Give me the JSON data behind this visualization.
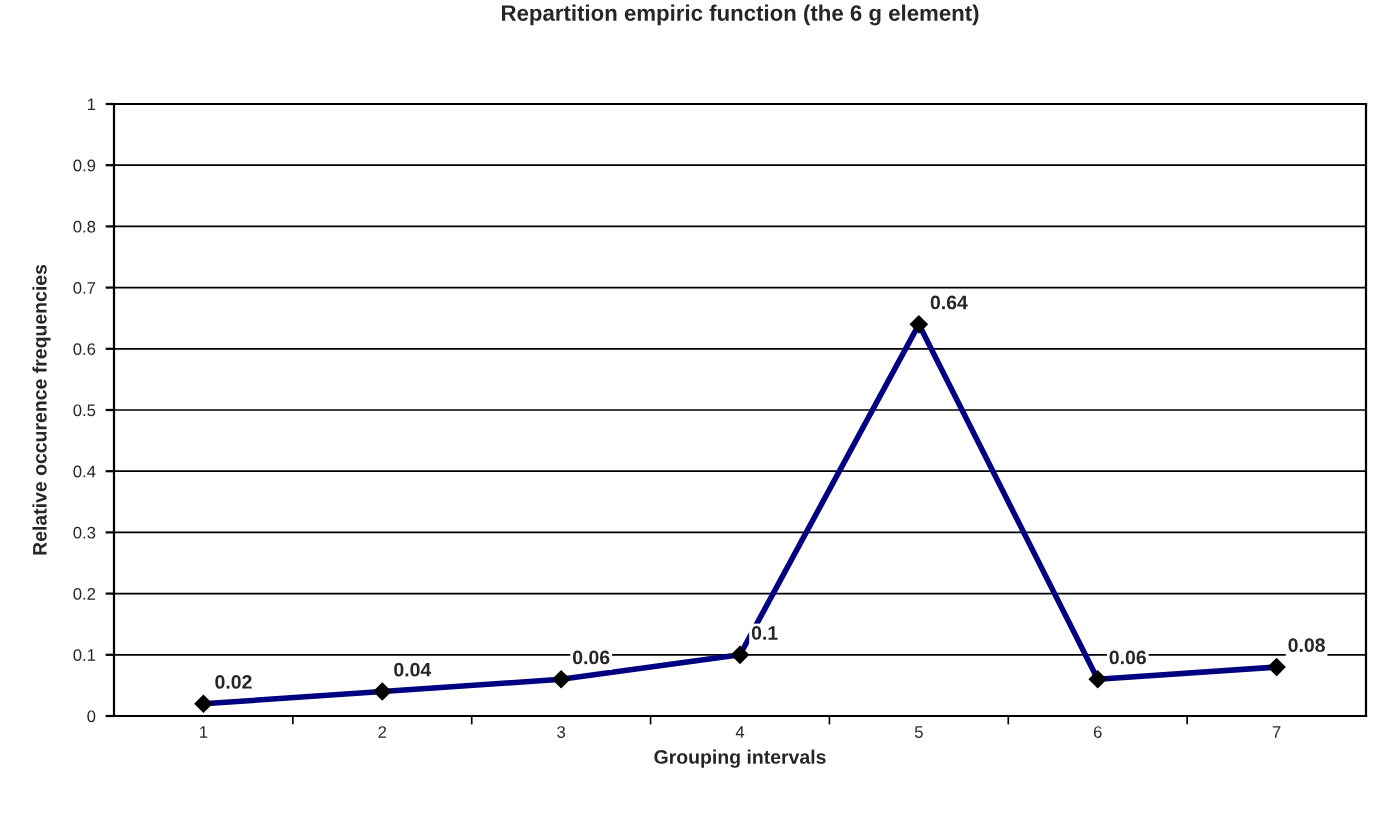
{
  "chart_data": {
    "type": "line",
    "title": "Repartition empiric function (the 6 g element)",
    "xlabel": "Grouping intervals",
    "ylabel": "Relative occurence frequencies",
    "categories": [
      "1",
      "2",
      "3",
      "4",
      "5",
      "6",
      "7"
    ],
    "series": [
      {
        "color": "#000080",
        "values": [
          0.02,
          0.04,
          0.06,
          0.1,
          0.64,
          0.06,
          0.08
        ]
      }
    ],
    "ylim": [
      0,
      1
    ],
    "yticks": [
      0,
      0.1,
      0.2,
      0.3,
      0.4,
      0.5,
      0.6,
      0.7,
      0.8,
      0.9,
      1
    ],
    "grid": "y",
    "marker": "diamond",
    "line_style": "solid",
    "data_labels": true
  }
}
